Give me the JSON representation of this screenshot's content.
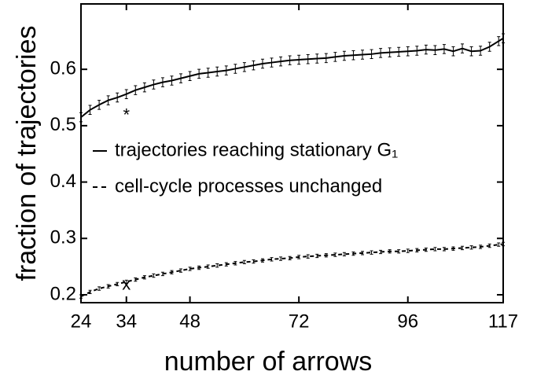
{
  "chart_data": {
    "type": "line",
    "xlabel": "number of arrows",
    "ylabel": "fraction of trajectories",
    "x": [
      24,
      26,
      28,
      30,
      32,
      34,
      36,
      38,
      40,
      42,
      44,
      46,
      48,
      50,
      52,
      54,
      56,
      58,
      60,
      62,
      64,
      66,
      68,
      70,
      72,
      74,
      76,
      78,
      80,
      82,
      84,
      86,
      88,
      90,
      92,
      94,
      96,
      98,
      100,
      102,
      104,
      106,
      108,
      110,
      112,
      114,
      116,
      117
    ],
    "series": [
      {
        "name": "trajectories reaching stationary G₁",
        "color": "#000000",
        "dash": "none",
        "error": 0.008,
        "values": [
          0.515,
          0.528,
          0.537,
          0.545,
          0.55,
          0.556,
          0.563,
          0.568,
          0.573,
          0.577,
          0.58,
          0.584,
          0.588,
          0.592,
          0.594,
          0.596,
          0.598,
          0.601,
          0.604,
          0.607,
          0.61,
          0.612,
          0.614,
          0.616,
          0.617,
          0.618,
          0.619,
          0.62,
          0.622,
          0.624,
          0.625,
          0.626,
          0.627,
          0.629,
          0.63,
          0.631,
          0.632,
          0.633,
          0.635,
          0.634,
          0.636,
          0.632,
          0.637,
          0.632,
          0.633,
          0.64,
          0.65,
          0.655
        ]
      },
      {
        "name": "cell-cycle processes unchanged",
        "color": "#000000",
        "dash": "5,4",
        "error": 0.003,
        "values": [
          0.197,
          0.205,
          0.211,
          0.215,
          0.219,
          0.223,
          0.227,
          0.231,
          0.234,
          0.237,
          0.24,
          0.243,
          0.246,
          0.248,
          0.25,
          0.252,
          0.254,
          0.256,
          0.258,
          0.259,
          0.261,
          0.263,
          0.264,
          0.265,
          0.267,
          0.268,
          0.269,
          0.27,
          0.271,
          0.272,
          0.273,
          0.274,
          0.275,
          0.276,
          0.277,
          0.277,
          0.278,
          0.279,
          0.28,
          0.281,
          0.281,
          0.282,
          0.283,
          0.284,
          0.285,
          0.287,
          0.289,
          0.29
        ]
      }
    ],
    "points": [
      {
        "label": "*",
        "x": 34,
        "y": 0.52
      },
      {
        "label": "x",
        "x": 34,
        "y": 0.22
      }
    ],
    "xlim": [
      24,
      117
    ],
    "xticks": [
      24,
      34,
      48,
      72,
      96,
      117
    ],
    "ylim": [
      0.186,
      0.716
    ],
    "yticks": [
      0.2,
      0.3,
      0.4,
      0.5,
      0.6
    ],
    "legend": "middle-left"
  }
}
